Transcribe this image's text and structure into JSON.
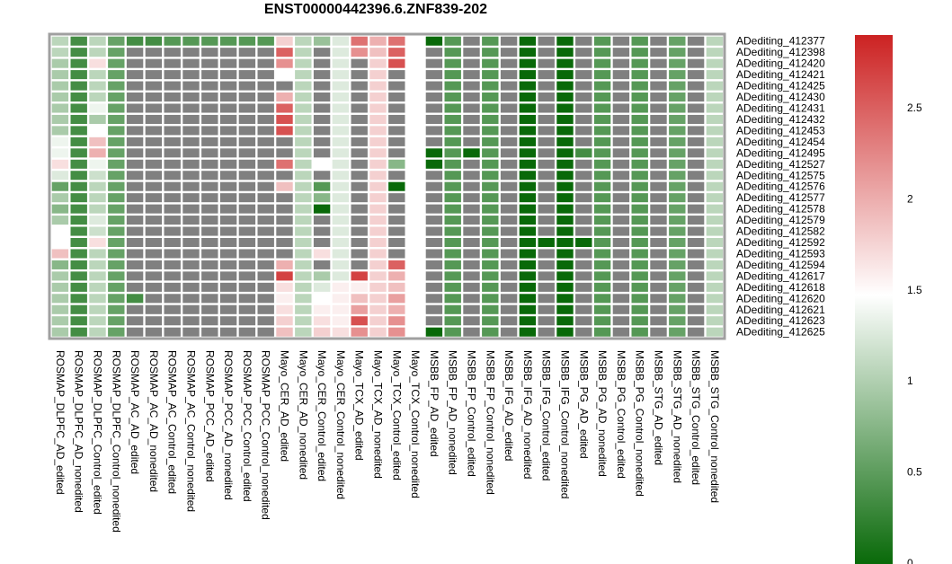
{
  "chart_data": {
    "type": "heatmap",
    "title": "ENST00000442396.6.ZNF839-202",
    "rows": [
      "ADediting_412377",
      "ADediting_412398",
      "ADediting_412420",
      "ADediting_412421",
      "ADediting_412425",
      "ADediting_412430",
      "ADediting_412431",
      "ADediting_412432",
      "ADediting_412453",
      "ADediting_412454",
      "ADediting_412495",
      "ADediting_412527",
      "ADediting_412575",
      "ADediting_412576",
      "ADediting_412577",
      "ADediting_412578",
      "ADediting_412579",
      "ADediting_412582",
      "ADediting_412592",
      "ADediting_412593",
      "ADediting_412594",
      "ADediting_412617",
      "ADediting_412618",
      "ADediting_412620",
      "ADediting_412621",
      "ADediting_412623",
      "ADediting_412625"
    ],
    "columns": [
      "ROSMAP_DLPFC_AD_edited",
      "ROSMAP_DLPFC_AD_nonedited",
      "ROSMAP_DLPFC_Control_edited",
      "ROSMAP_DLPFC_Control_nonedited",
      "ROSMAP_AC_AD_edited",
      "ROSMAP_AC_AD_nonedited",
      "ROSMAP_AC_Control_edited",
      "ROSMAP_AC_Control_nonedited",
      "ROSMAP_PCC_AD_edited",
      "ROSMAP_PCC_AD_nonedited",
      "ROSMAP_PCC_Control_edited",
      "ROSMAP_PCC_Control_nonedited",
      "Mayo_CER_AD_edited",
      "Mayo_CER_AD_nonedited",
      "Mayo_CER_Control_edited",
      "Mayo_CER_Control_nonedited",
      "Mayo_TCX_AD_edited",
      "Mayo_TCX_AD_nonedited",
      "Mayo_TCX_Control_edited",
      "Mayo_TCX_Control_nonedited",
      "MSBB_FP_AD_edited",
      "MSBB_FP_AD_nonedited",
      "MSBB_FP_Control_edited",
      "MSBB_FP_Control_nonedited",
      "MSBB_IFG_AD_edited",
      "MSBB_IFG_AD_nonedited",
      "MSBB_IFG_Control_edited",
      "MSBB_IFG_Control_nonedited",
      "MSBB_PG_AD_edited",
      "MSBB_PG_AD_nonedited",
      "MSBB_PG_Control_edited",
      "MSBB_PG_Control_nonedited",
      "MSBB_STG_AD_edited",
      "MSBB_STG_AD_nonedited",
      "MSBB_STG_Control_edited",
      "MSBB_STG_Control_nonedited"
    ],
    "legend": {
      "ticks": [
        0,
        0.5,
        1,
        1.5,
        2,
        2.5
      ],
      "min": 0,
      "max": 2.9
    },
    "colors": {
      "low": "#006400",
      "mid": "#ffffff",
      "high": "#cc2222",
      "na": "#808080",
      "border": "#a0a0a0"
    },
    "values": [
      [
        1.1,
        0.4,
        1.1,
        0.6,
        0.4,
        0.4,
        0.5,
        0.5,
        0.5,
        0.5,
        0.5,
        0.5,
        1.8,
        1.1,
        0.9,
        1.3,
        2.4,
        2.0,
        2.4,
        1.5,
        0.05,
        0.5,
        null,
        0.5,
        null,
        0.05,
        null,
        0.05,
        null,
        0.5,
        null,
        0.5,
        null,
        0.6,
        null,
        1.1
      ],
      [
        1.1,
        0.4,
        1.1,
        0.6,
        null,
        null,
        null,
        null,
        null,
        null,
        null,
        null,
        2.5,
        1.1,
        null,
        1.3,
        2.2,
        1.9,
        2.5,
        1.5,
        null,
        0.5,
        null,
        0.5,
        null,
        0.05,
        null,
        0.05,
        null,
        0.5,
        null,
        0.5,
        null,
        0.6,
        null,
        1.1
      ],
      [
        1.0,
        0.4,
        1.7,
        0.6,
        null,
        null,
        null,
        null,
        null,
        null,
        null,
        null,
        2.2,
        1.1,
        null,
        1.3,
        null,
        1.8,
        2.6,
        1.5,
        null,
        0.5,
        null,
        0.5,
        null,
        0.05,
        null,
        0.05,
        null,
        0.5,
        null,
        0.5,
        null,
        0.6,
        null,
        1.1
      ],
      [
        1.0,
        0.4,
        1.1,
        0.6,
        null,
        null,
        null,
        null,
        null,
        null,
        null,
        null,
        1.5,
        1.1,
        null,
        1.3,
        null,
        1.8,
        null,
        1.5,
        null,
        0.5,
        null,
        0.5,
        null,
        0.05,
        null,
        0.05,
        null,
        0.5,
        null,
        0.5,
        null,
        0.6,
        null,
        1.1
      ],
      [
        1.0,
        0.4,
        1.1,
        0.6,
        null,
        null,
        null,
        null,
        null,
        null,
        null,
        null,
        null,
        1.1,
        null,
        1.3,
        null,
        1.8,
        null,
        1.5,
        null,
        0.5,
        null,
        0.5,
        null,
        0.05,
        null,
        0.05,
        null,
        0.5,
        null,
        0.5,
        null,
        0.6,
        null,
        1.1
      ],
      [
        1.0,
        0.4,
        1.1,
        0.6,
        null,
        null,
        null,
        null,
        null,
        null,
        null,
        null,
        2.0,
        1.1,
        null,
        1.3,
        null,
        1.8,
        null,
        1.5,
        null,
        0.5,
        null,
        0.5,
        null,
        0.05,
        null,
        0.05,
        null,
        0.5,
        null,
        0.5,
        null,
        0.6,
        null,
        1.1
      ],
      [
        1.0,
        0.4,
        1.4,
        0.6,
        null,
        null,
        null,
        null,
        null,
        null,
        null,
        null,
        2.5,
        1.1,
        null,
        1.3,
        null,
        1.8,
        null,
        1.5,
        null,
        0.5,
        null,
        0.5,
        null,
        0.05,
        null,
        0.05,
        null,
        0.5,
        null,
        0.5,
        null,
        0.6,
        null,
        1.1
      ],
      [
        1.0,
        0.4,
        1.0,
        0.6,
        null,
        null,
        null,
        null,
        null,
        null,
        null,
        null,
        2.6,
        1.1,
        null,
        1.3,
        null,
        1.8,
        null,
        1.5,
        null,
        0.5,
        null,
        0.5,
        null,
        0.05,
        null,
        0.05,
        null,
        0.5,
        null,
        0.5,
        null,
        0.6,
        null,
        1.1
      ],
      [
        1.0,
        0.4,
        1.5,
        0.6,
        null,
        null,
        null,
        null,
        null,
        null,
        null,
        null,
        2.6,
        1.1,
        null,
        1.3,
        null,
        1.8,
        null,
        1.5,
        null,
        0.5,
        null,
        0.5,
        null,
        0.05,
        null,
        0.05,
        null,
        0.5,
        null,
        0.5,
        null,
        0.6,
        null,
        1.1
      ],
      [
        1.4,
        0.4,
        1.9,
        0.6,
        null,
        null,
        null,
        null,
        null,
        null,
        null,
        null,
        null,
        1.1,
        null,
        1.3,
        null,
        1.8,
        null,
        1.5,
        null,
        0.5,
        null,
        0.5,
        null,
        0.05,
        null,
        0.05,
        null,
        0.5,
        null,
        0.5,
        null,
        0.6,
        null,
        1.1
      ],
      [
        1.4,
        0.4,
        2.0,
        0.6,
        null,
        null,
        null,
        null,
        null,
        null,
        null,
        null,
        null,
        1.1,
        null,
        1.3,
        null,
        1.8,
        null,
        1.5,
        0.05,
        0.5,
        0.05,
        0.5,
        null,
        0.05,
        null,
        0.05,
        0.4,
        0.5,
        null,
        0.5,
        null,
        0.6,
        null,
        1.1
      ],
      [
        1.7,
        0.4,
        1.4,
        0.6,
        null,
        null,
        null,
        null,
        null,
        null,
        null,
        null,
        2.4,
        1.1,
        1.5,
        1.3,
        null,
        1.8,
        0.8,
        1.5,
        0.05,
        0.5,
        null,
        0.5,
        null,
        0.05,
        null,
        0.05,
        null,
        0.5,
        null,
        0.5,
        null,
        0.6,
        null,
        1.1
      ],
      [
        1.3,
        0.4,
        1.2,
        0.6,
        null,
        null,
        null,
        null,
        null,
        null,
        null,
        null,
        null,
        1.1,
        null,
        1.3,
        null,
        1.8,
        null,
        1.5,
        null,
        0.5,
        null,
        0.5,
        null,
        0.05,
        null,
        0.05,
        null,
        0.5,
        null,
        0.5,
        null,
        0.6,
        null,
        1.1
      ],
      [
        0.6,
        0.4,
        1.1,
        0.6,
        null,
        null,
        null,
        null,
        null,
        null,
        null,
        null,
        1.9,
        1.1,
        0.5,
        1.3,
        null,
        1.8,
        0.05,
        1.5,
        null,
        0.5,
        null,
        0.5,
        null,
        0.05,
        null,
        0.05,
        null,
        0.5,
        null,
        0.5,
        null,
        0.6,
        null,
        1.1
      ],
      [
        1.0,
        0.4,
        1.1,
        0.6,
        null,
        null,
        null,
        null,
        null,
        null,
        null,
        null,
        null,
        1.1,
        0.8,
        1.3,
        null,
        1.8,
        null,
        1.5,
        null,
        0.5,
        null,
        0.5,
        null,
        0.05,
        null,
        0.05,
        null,
        0.5,
        null,
        0.5,
        null,
        0.6,
        null,
        1.1
      ],
      [
        0.8,
        0.4,
        1.1,
        0.6,
        null,
        null,
        null,
        null,
        null,
        null,
        null,
        null,
        null,
        1.1,
        0.05,
        1.3,
        null,
        1.8,
        null,
        1.5,
        null,
        0.5,
        null,
        0.5,
        null,
        0.05,
        null,
        0.05,
        null,
        0.5,
        null,
        0.5,
        null,
        0.6,
        null,
        1.1
      ],
      [
        1.0,
        0.4,
        1.3,
        0.6,
        null,
        null,
        null,
        null,
        null,
        null,
        null,
        null,
        null,
        1.1,
        null,
        1.3,
        null,
        1.8,
        null,
        1.5,
        null,
        0.5,
        null,
        0.5,
        null,
        0.05,
        null,
        0.05,
        null,
        0.5,
        null,
        0.5,
        null,
        0.6,
        null,
        1.1
      ],
      [
        1.5,
        0.4,
        1.2,
        0.6,
        null,
        null,
        null,
        null,
        null,
        null,
        null,
        null,
        null,
        1.1,
        null,
        1.3,
        null,
        1.8,
        null,
        1.5,
        null,
        0.5,
        null,
        0.5,
        null,
        0.05,
        null,
        0.05,
        null,
        0.5,
        null,
        0.5,
        null,
        0.6,
        null,
        1.1
      ],
      [
        1.5,
        0.4,
        1.7,
        0.6,
        null,
        null,
        null,
        null,
        null,
        null,
        null,
        null,
        null,
        1.1,
        null,
        1.3,
        null,
        1.8,
        null,
        1.5,
        null,
        0.5,
        null,
        0.5,
        null,
        0.05,
        0.05,
        0.05,
        0.05,
        0.5,
        null,
        0.5,
        null,
        0.6,
        null,
        1.1
      ],
      [
        1.9,
        0.4,
        1.1,
        0.6,
        null,
        null,
        null,
        null,
        null,
        null,
        null,
        null,
        null,
        1.1,
        1.7,
        1.3,
        null,
        1.8,
        null,
        1.5,
        null,
        0.5,
        null,
        0.5,
        null,
        0.05,
        null,
        0.05,
        null,
        0.5,
        null,
        0.5,
        null,
        0.6,
        null,
        1.1
      ],
      [
        0.8,
        0.4,
        1.1,
        0.6,
        null,
        null,
        null,
        null,
        null,
        null,
        null,
        null,
        2.0,
        1.1,
        null,
        1.3,
        null,
        1.8,
        2.5,
        1.5,
        null,
        0.5,
        null,
        0.5,
        null,
        0.05,
        null,
        0.05,
        null,
        0.5,
        null,
        0.5,
        null,
        0.6,
        null,
        1.1
      ],
      [
        1.0,
        0.4,
        1.1,
        0.6,
        null,
        null,
        null,
        null,
        null,
        null,
        null,
        null,
        2.7,
        1.1,
        1.0,
        1.3,
        2.7,
        1.8,
        2.0,
        1.5,
        null,
        0.5,
        null,
        0.5,
        null,
        0.05,
        null,
        0.05,
        null,
        0.5,
        null,
        0.5,
        null,
        0.6,
        null,
        1.1
      ],
      [
        1.0,
        0.4,
        1.1,
        0.6,
        null,
        null,
        null,
        null,
        null,
        null,
        null,
        null,
        1.7,
        1.1,
        1.3,
        1.6,
        1.6,
        1.8,
        1.9,
        1.5,
        null,
        0.5,
        null,
        0.5,
        null,
        0.05,
        null,
        0.05,
        null,
        0.5,
        null,
        0.5,
        null,
        0.6,
        null,
        1.1
      ],
      [
        1.0,
        0.4,
        1.1,
        0.6,
        0.4,
        null,
        null,
        null,
        null,
        null,
        null,
        null,
        1.6,
        1.1,
        1.5,
        1.6,
        1.9,
        1.8,
        2.1,
        1.5,
        null,
        0.5,
        null,
        0.5,
        null,
        0.05,
        null,
        0.05,
        null,
        0.5,
        null,
        0.5,
        null,
        0.6,
        null,
        1.1
      ],
      [
        1.0,
        0.4,
        1.1,
        0.6,
        null,
        null,
        null,
        null,
        null,
        null,
        null,
        null,
        1.7,
        1.1,
        1.6,
        1.6,
        2.1,
        1.8,
        2.0,
        1.5,
        null,
        0.5,
        null,
        0.5,
        null,
        0.05,
        null,
        0.05,
        null,
        0.5,
        null,
        0.5,
        null,
        0.6,
        null,
        1.1
      ],
      [
        1.0,
        0.4,
        1.1,
        0.6,
        null,
        null,
        null,
        null,
        null,
        null,
        null,
        null,
        1.8,
        1.1,
        1.7,
        1.6,
        2.6,
        1.8,
        2.2,
        1.5,
        null,
        0.5,
        null,
        0.5,
        null,
        0.05,
        null,
        0.05,
        null,
        0.5,
        null,
        0.5,
        null,
        0.6,
        null,
        1.1
      ],
      [
        1.0,
        0.4,
        1.1,
        0.6,
        null,
        null,
        null,
        null,
        null,
        null,
        null,
        null,
        1.9,
        1.1,
        1.8,
        1.7,
        2.2,
        1.8,
        2.2,
        1.5,
        0.05,
        0.5,
        null,
        0.5,
        null,
        0.05,
        null,
        0.05,
        null,
        0.5,
        null,
        0.5,
        null,
        0.6,
        null,
        1.1
      ]
    ]
  }
}
